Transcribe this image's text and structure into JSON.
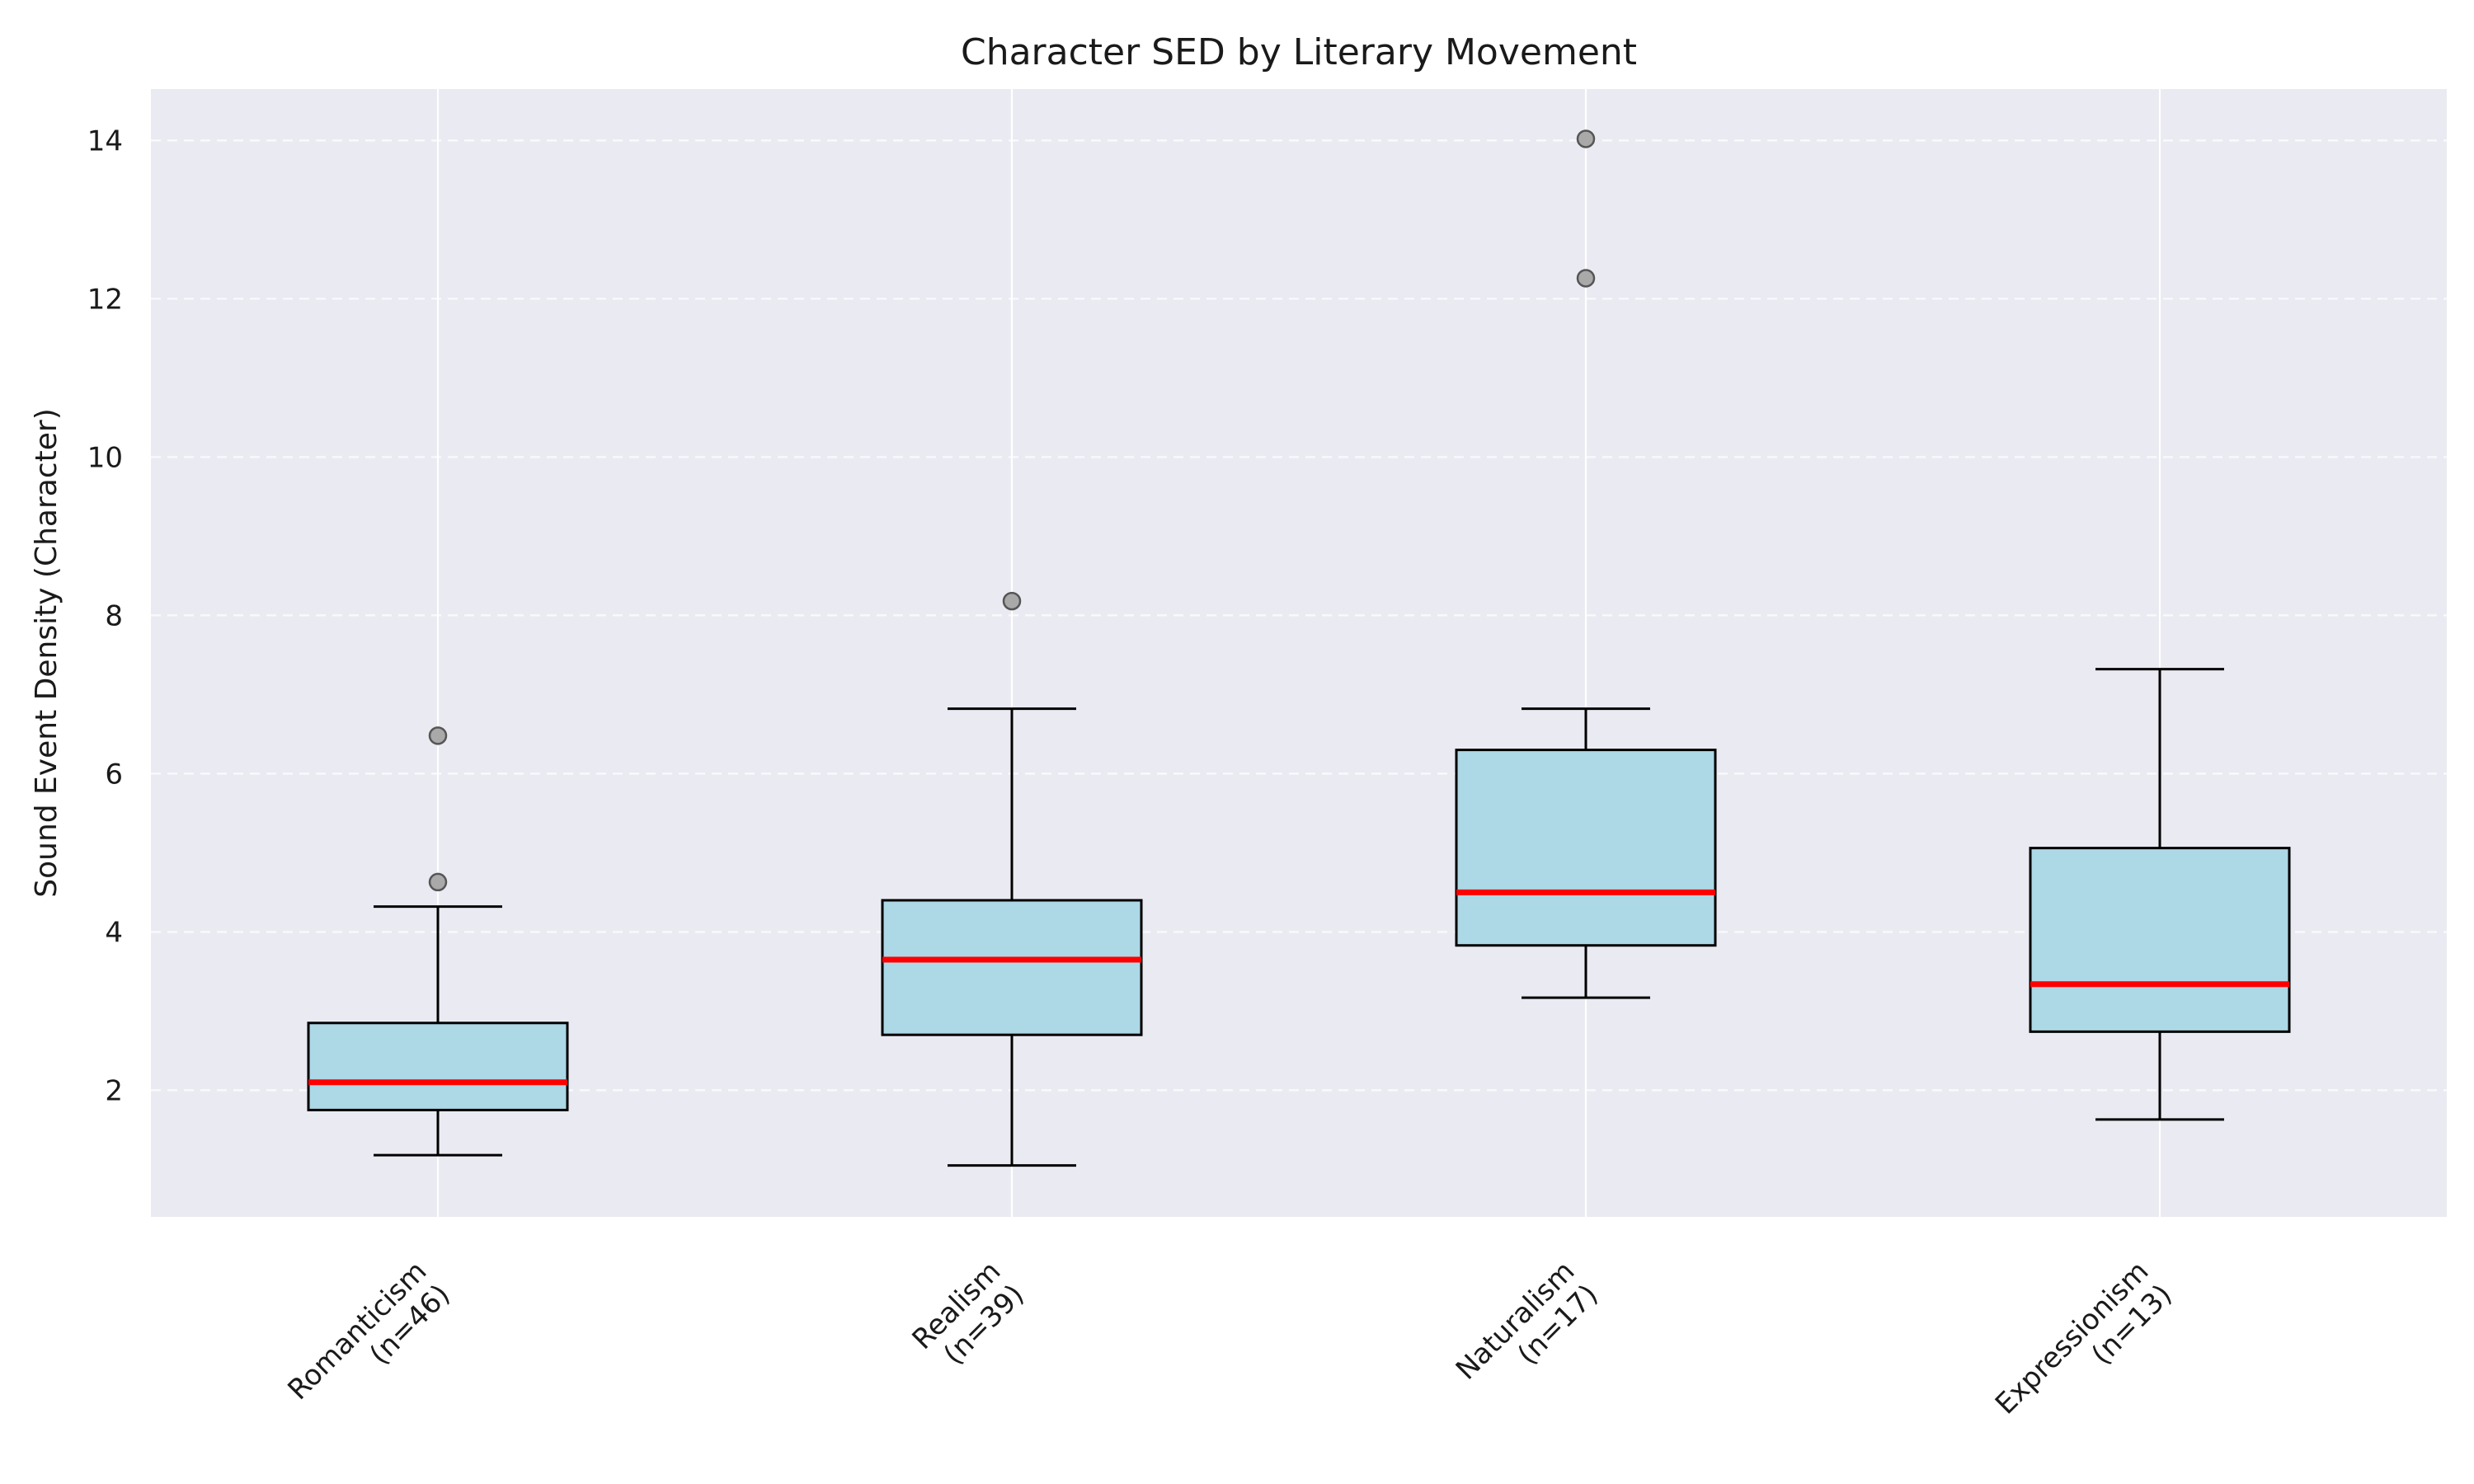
{
  "chart_data": {
    "type": "box",
    "title": "Character SED by Literary Movement",
    "xlabel": "",
    "ylabel": "Sound Event Density (Character)",
    "ylim": [
      0.4,
      14.65
    ],
    "yticks": [
      2,
      4,
      6,
      8,
      10,
      12,
      14
    ],
    "grid": true,
    "legend": "none",
    "categories": [
      "Romanticism\n(n=46)",
      "Realism\n(n=39)",
      "Naturalism\n(n=17)",
      "Expressionism\n(n=13)"
    ],
    "boxes": [
      {
        "q1": 1.75,
        "median": 2.1,
        "q3": 2.85,
        "whisker_low": 1.18,
        "whisker_high": 4.32,
        "outliers": [
          4.63,
          6.48
        ]
      },
      {
        "q1": 2.7,
        "median": 3.65,
        "q3": 4.4,
        "whisker_low": 1.05,
        "whisker_high": 6.82,
        "outliers": [
          8.18
        ]
      },
      {
        "q1": 3.83,
        "median": 4.5,
        "q3": 6.3,
        "whisker_low": 3.17,
        "whisker_high": 6.82,
        "outliers": [
          12.26,
          14.02
        ]
      },
      {
        "q1": 2.74,
        "median": 3.34,
        "q3": 5.06,
        "whisker_low": 1.63,
        "whisker_high": 7.32,
        "outliers": []
      }
    ],
    "colors": {
      "background": "#EAEAF2",
      "box_fill": "#ADD8E6",
      "box_edge": "#000000",
      "median": "#FF0000",
      "flier_fill": "#A9A9A9",
      "flier_edge": "#555555",
      "grid": "#FFFFFF"
    }
  }
}
